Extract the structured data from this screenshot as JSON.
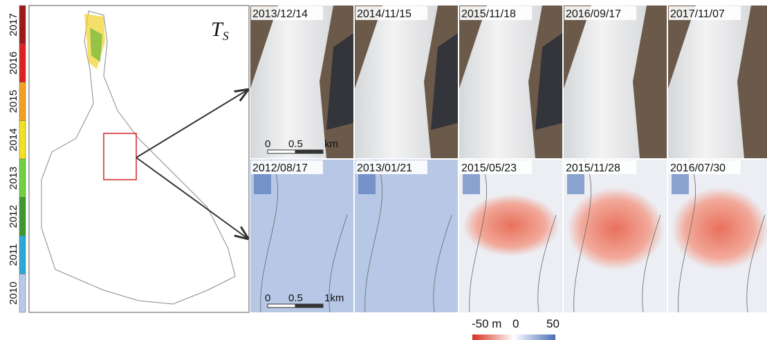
{
  "legend": {
    "years": [
      "2017",
      "2016",
      "2015",
      "2014",
      "2013",
      "2012",
      "2011",
      "2010"
    ]
  },
  "map": {
    "label": "T",
    "label_sub": "S"
  },
  "optical": {
    "dates": [
      "2013/12/14",
      "2014/11/15",
      "2015/11/18",
      "2016/09/17",
      "2017/11/07"
    ],
    "scale": [
      "0",
      "0.5",
      "km"
    ]
  },
  "elevation_change": {
    "dates": [
      "2012/08/17",
      "2013/01/21",
      "2015/05/23",
      "2015/11/28",
      "2016/07/30"
    ],
    "scale": [
      "0",
      "0.5",
      "1km"
    ]
  },
  "colorbar": {
    "labels": [
      "-50 m",
      "0",
      "50"
    ]
  }
}
